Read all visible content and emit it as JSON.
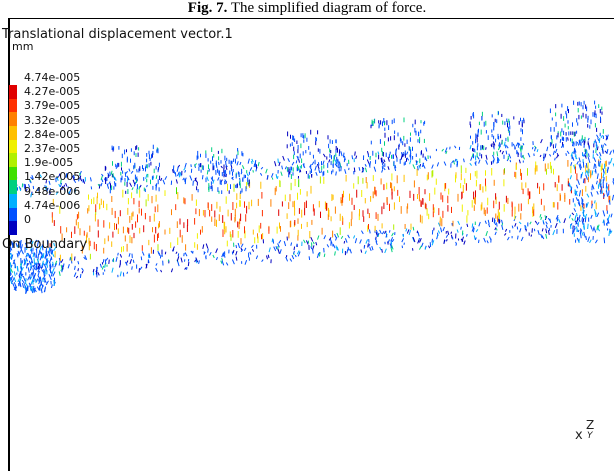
{
  "caption": {
    "label": "Fig. 7.",
    "text": " The simplified diagram of force."
  },
  "legend": {
    "title": "Translational displacement vector.1",
    "unit": "mm",
    "ticks": [
      "4.74e-005",
      "4.27e-005",
      "3.79e-005",
      "3.32e-005",
      "2.84e-005",
      "2.37e-005",
      "1.9e-005",
      "1.42e-005",
      "9.48e-006",
      "4.74e-006",
      "0"
    ],
    "colors": [
      "#e00000",
      "#ff3000",
      "#ff8000",
      "#ffc000",
      "#f0f000",
      "#b0f000",
      "#40e000",
      "#00d080",
      "#00b0ff",
      "#0050ff",
      "#0000c0"
    ],
    "boundary_label": "On Boundary"
  },
  "axis": {
    "x": "x",
    "z": "Z",
    "y": "Y"
  }
}
